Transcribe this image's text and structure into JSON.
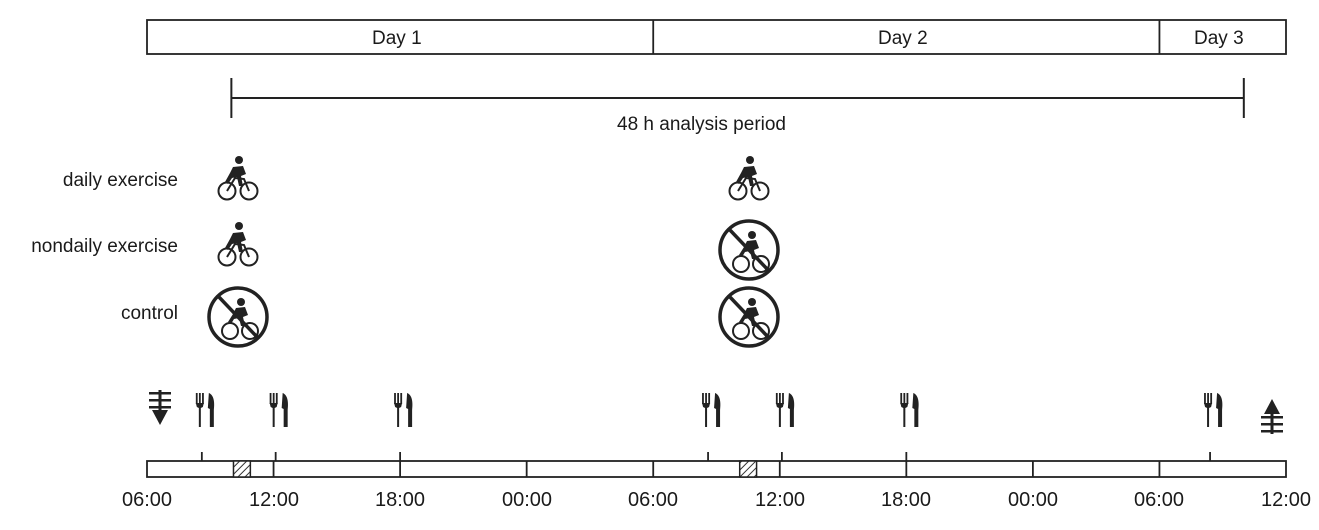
{
  "days": [
    {
      "label": "Day 1"
    },
    {
      "label": "Day 2"
    },
    {
      "label": "Day 3"
    }
  ],
  "analysis_period_label": "48 h analysis period",
  "rows": [
    {
      "label": "daily exercise",
      "day1": "exercise",
      "day2": "exercise"
    },
    {
      "label": "nondaily exercise",
      "day1": "exercise",
      "day2": "no-exercise"
    },
    {
      "label": "control",
      "day1": "no-exercise",
      "day2": "no-exercise"
    }
  ],
  "timeline": {
    "tick_labels": [
      "06:00",
      "12:00",
      "18:00",
      "00:00",
      "06:00",
      "12:00",
      "18:00",
      "00:00",
      "06:00",
      "12:00"
    ],
    "meal_times_h": [
      8.5,
      12.5,
      18,
      32.5,
      36.5,
      42,
      56.5
    ],
    "exercise_windows_h": [
      [
        10,
        11
      ]
    ],
    "exercise_windows_day2_h": [
      [
        34,
        35
      ]
    ]
  },
  "icons": {
    "start": "arrow-down-icon",
    "end": "arrow-up-icon",
    "meal": "fork-knife-icon",
    "exercise": "cyclist-icon",
    "no_exercise": "no-cycling-icon"
  }
}
